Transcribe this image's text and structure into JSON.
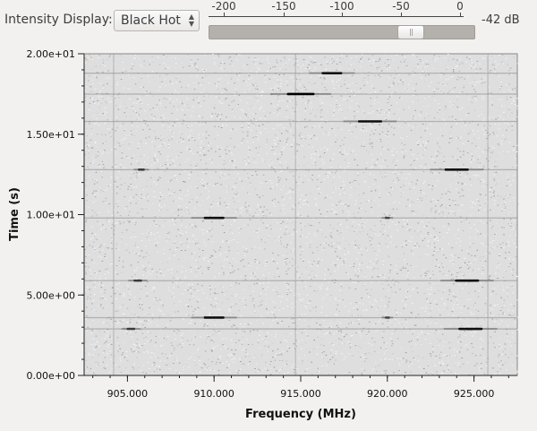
{
  "controls": {
    "intensity_label": "Intensity Display:",
    "intensity_value": "Black Hot",
    "db_readout": "-42 dB",
    "slider_level_db": -42,
    "slider_ticks": [
      "-200",
      "-150",
      "-100",
      "-50",
      "0"
    ]
  },
  "chart_data": {
    "type": "heatmap",
    "xlabel": "Frequency (MHz)",
    "ylabel": "Time (s)",
    "xlim": [
      902.5,
      927.5
    ],
    "ylim": [
      0,
      20
    ],
    "x_ticks": [
      "905.000",
      "910.000",
      "915.000",
      "920.000",
      "925.000"
    ],
    "x_tick_values": [
      905,
      910,
      915,
      920,
      925
    ],
    "y_ticks": [
      "0.00e+00",
      "5.00e+00",
      "1.00e+01",
      "1.50e+01",
      "2.00e+01"
    ],
    "y_tick_values": [
      0,
      5,
      10,
      15,
      20
    ],
    "colormap": "Black Hot",
    "signals": [
      {
        "freq": 916.8,
        "time": 18.8,
        "width": 1.2,
        "intensity": 0.9
      },
      {
        "freq": 915.0,
        "time": 17.5,
        "width": 1.6,
        "intensity": 1.0
      },
      {
        "freq": 919.0,
        "time": 15.8,
        "width": 1.4,
        "intensity": 0.9
      },
      {
        "freq": 905.8,
        "time": 12.8,
        "width": 0.4,
        "intensity": 0.6
      },
      {
        "freq": 924.0,
        "time": 12.8,
        "width": 1.4,
        "intensity": 0.9
      },
      {
        "freq": 910.0,
        "time": 9.8,
        "width": 1.2,
        "intensity": 0.9
      },
      {
        "freq": 920.0,
        "time": 9.8,
        "width": 0.3,
        "intensity": 0.5
      },
      {
        "freq": 905.6,
        "time": 5.9,
        "width": 0.5,
        "intensity": 0.6
      },
      {
        "freq": 924.6,
        "time": 5.9,
        "width": 1.4,
        "intensity": 0.9
      },
      {
        "freq": 910.0,
        "time": 3.6,
        "width": 1.2,
        "intensity": 0.9
      },
      {
        "freq": 920.0,
        "time": 3.6,
        "width": 0.3,
        "intensity": 0.5
      },
      {
        "freq": 905.2,
        "time": 2.9,
        "width": 0.5,
        "intensity": 0.6
      },
      {
        "freq": 924.8,
        "time": 2.9,
        "width": 1.4,
        "intensity": 0.9
      }
    ],
    "background_rows": [
      18.8,
      17.5,
      15.8,
      12.8,
      9.8,
      5.9,
      3.6,
      2.9
    ],
    "background_cols": [
      904.2,
      914.7,
      925.8
    ]
  }
}
